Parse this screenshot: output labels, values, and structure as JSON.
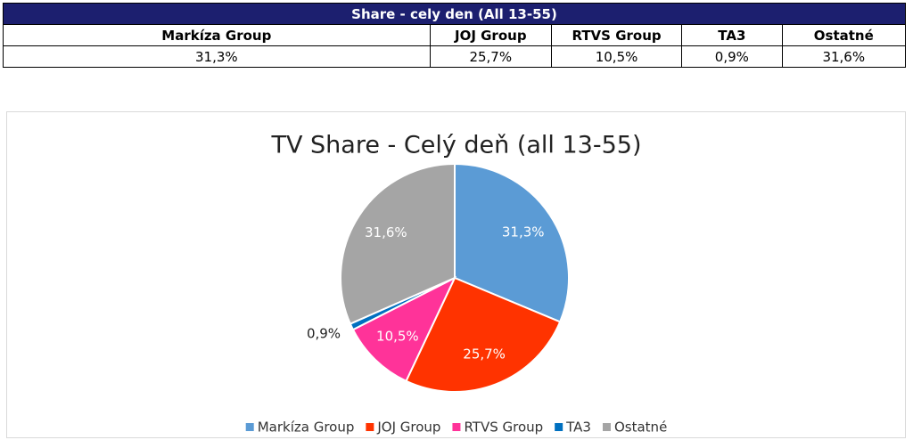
{
  "table": {
    "title": "Share - cely den (All 13-55)",
    "header": [
      "Markíza Group",
      "JOJ Group",
      "RTVS Group",
      "TA3",
      "Ostatné"
    ],
    "rows": [
      [
        "31,3%",
        "25,7%",
        "10,5%",
        "0,9%",
        "31,6%"
      ]
    ]
  },
  "chart_data": {
    "type": "pie",
    "title": "TV Share - Celý deň (all 13-55)",
    "categories": [
      "Markíza Group",
      "JOJ Group",
      "RTVS Group",
      "TA3",
      "Ostatné"
    ],
    "values": [
      31.3,
      25.7,
      10.5,
      0.9,
      31.6
    ],
    "value_labels": [
      "31,3%",
      "25,7%",
      "10,5%",
      "0,9%",
      "31,6%"
    ],
    "colors": [
      "#5b9bd5",
      "#ff3300",
      "#ff3399",
      "#0070c0",
      "#a5a5a5"
    ],
    "legend": "bottom"
  }
}
